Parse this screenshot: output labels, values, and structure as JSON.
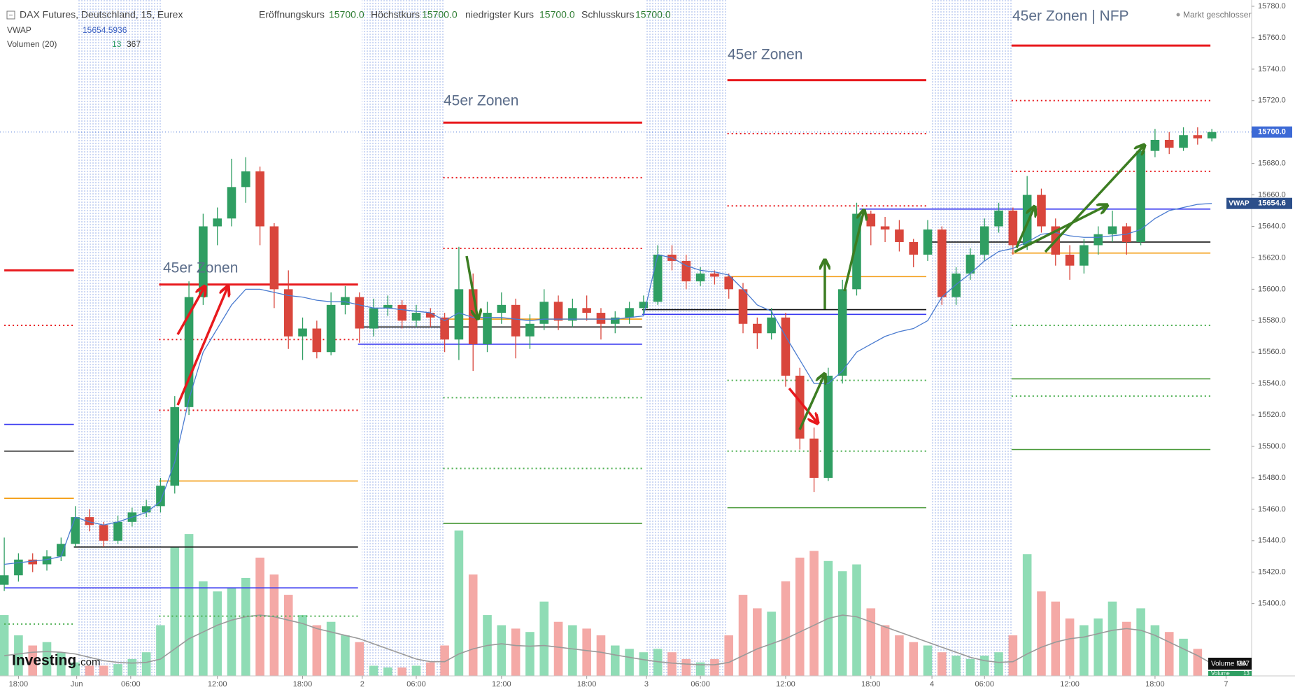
{
  "header": {
    "title": "DAX Futures, Deutschland, 15, Eurex",
    "open_label": "Eröffnungskurs",
    "open": "15700.0",
    "high_label": "Höchstkurs",
    "high": "15700.0",
    "low_label": "niedrigster Kurs",
    "low": "15700.0",
    "close_label": "Schlusskurs",
    "close": "15700.0",
    "vwap_name": "VWAP",
    "volume_name": "Volumen (20)",
    "status": "Markt geschlossen"
  },
  "logo": {
    "brand": "Investing",
    "suffix": ".com"
  },
  "chart_data": {
    "type": "candlestick",
    "annotations": [
      "45er Zonen",
      "45er Zonen",
      "45er Zonen",
      "45er Zonen | NFP"
    ],
    "ylim": [
      15354,
      15784
    ],
    "yticks": [
      {
        "value": 15400,
        "label": "15400.0"
      },
      {
        "value": 15420,
        "label": "15420.0"
      },
      {
        "value": 15440,
        "label": "15440.0"
      },
      {
        "value": 15460,
        "label": "15460.0"
      },
      {
        "value": 15480,
        "label": "15480.0"
      },
      {
        "value": 15500,
        "label": "15500.0"
      },
      {
        "value": 15520,
        "label": "15520.0"
      },
      {
        "value": 15540,
        "label": "15540.0"
      },
      {
        "value": 15560,
        "label": "15560.0"
      },
      {
        "value": 15580,
        "label": "15580.0"
      },
      {
        "value": 15600,
        "label": "15600.0"
      },
      {
        "value": 15620,
        "label": "15620.0"
      },
      {
        "value": 15640,
        "label": "15640.0"
      },
      {
        "value": 15660,
        "label": "15660.0"
      },
      {
        "value": 15680,
        "label": "15680.0"
      },
      {
        "value": 15700,
        "label": "15700.0"
      },
      {
        "value": 15720,
        "label": "15720.0"
      },
      {
        "value": 15740,
        "label": "15740.0"
      },
      {
        "value": 15760,
        "label": "15760.0"
      },
      {
        "value": 15780,
        "label": "15780.0"
      }
    ],
    "xlim": [
      -0.3,
      87.8
    ],
    "xticks": [
      {
        "value": 1,
        "label": "18:00"
      },
      {
        "value": 5.1,
        "label": "Jun"
      },
      {
        "value": 8.9,
        "label": "06:00"
      },
      {
        "value": 15,
        "label": "12:00"
      },
      {
        "value": 21,
        "label": "18:00"
      },
      {
        "value": 25.2,
        "label": "2"
      },
      {
        "value": 29,
        "label": "06:00"
      },
      {
        "value": 35,
        "label": "12:00"
      },
      {
        "value": 41,
        "label": "18:00"
      },
      {
        "value": 45.2,
        "label": "3"
      },
      {
        "value": 49,
        "label": "06:00"
      },
      {
        "value": 55,
        "label": "12:00"
      },
      {
        "value": 61,
        "label": "18:00"
      },
      {
        "value": 65.3,
        "label": "4"
      },
      {
        "value": 69,
        "label": "06:00"
      },
      {
        "value": 75,
        "label": "12:00"
      },
      {
        "value": 81,
        "label": "18:00"
      },
      {
        "value": 86,
        "label": "7"
      }
    ],
    "grid": false,
    "up_color": "#2f9e62",
    "down_color": "#d9463c",
    "volume_up_color": "#8fdcb5",
    "volume_down_color": "#f4a9a6",
    "vwap_color": "#4a7bd0",
    "volume_ma_color": "#9a9a9a",
    "last_price": {
      "value": 15700,
      "label": "15700.0"
    },
    "vwap_label": "15654.6",
    "volume_ma_name": "Volume MA",
    "volume_name": "Volume",
    "y2lim": [
      0,
      20000
    ],
    "candles": [
      [
        15412,
        15442,
        15408,
        15418
      ],
      [
        15418,
        15432,
        15414,
        15428
      ],
      [
        15428,
        15432,
        15420,
        15425
      ],
      [
        15425,
        15434,
        15421,
        15430
      ],
      [
        15430,
        15442,
        15427,
        15438
      ],
      [
        15438,
        15462,
        15436,
        15455
      ],
      [
        15455,
        15460,
        15446,
        15450
      ],
      [
        15450,
        15452,
        15436,
        15440
      ],
      [
        15440,
        15456,
        15438,
        15452
      ],
      [
        15452,
        15461,
        15449,
        15458
      ],
      [
        15458,
        15466,
        15455,
        15462
      ],
      [
        15462,
        15480,
        15458,
        15475
      ],
      [
        15475,
        15532,
        15470,
        15525
      ],
      [
        15525,
        15605,
        15520,
        15595
      ],
      [
        15595,
        15648,
        15590,
        15640
      ],
      [
        15640,
        15652,
        15628,
        15645
      ],
      [
        15645,
        15683,
        15640,
        15665
      ],
      [
        15665,
        15684,
        15655,
        15675
      ],
      [
        15675,
        15678,
        15628,
        15640
      ],
      [
        15640,
        15642,
        15588,
        15600
      ],
      [
        15600,
        15612,
        15562,
        15570
      ],
      [
        15570,
        15582,
        15555,
        15575
      ],
      [
        15575,
        15580,
        15556,
        15560
      ],
      [
        15560,
        15598,
        15558,
        15590
      ],
      [
        15590,
        15602,
        15584,
        15595
      ],
      [
        15595,
        15598,
        15566,
        15575
      ],
      [
        15575,
        15594,
        15570,
        15588
      ],
      [
        15588,
        15596,
        15583,
        15590
      ],
      [
        15590,
        15593,
        15575,
        15580
      ],
      [
        15580,
        15590,
        15576,
        15585
      ],
      [
        15585,
        15588,
        15576,
        15582
      ],
      [
        15582,
        15585,
        15560,
        15568
      ],
      [
        15568,
        15627,
        15555,
        15600
      ],
      [
        15600,
        15610,
        15548,
        15565
      ],
      [
        15565,
        15592,
        15560,
        15585
      ],
      [
        15585,
        15598,
        15578,
        15590
      ],
      [
        15590,
        15594,
        15556,
        15570
      ],
      [
        15570,
        15584,
        15562,
        15578
      ],
      [
        15578,
        15600,
        15574,
        15592
      ],
      [
        15592,
        15596,
        15574,
        15580
      ],
      [
        15580,
        15594,
        15576,
        15588
      ],
      [
        15588,
        15596,
        15580,
        15585
      ],
      [
        15585,
        15588,
        15568,
        15578
      ],
      [
        15578,
        15586,
        15572,
        15582
      ],
      [
        15582,
        15592,
        15578,
        15588
      ],
      [
        15588,
        15596,
        15584,
        15592
      ],
      [
        15592,
        15628,
        15590,
        15622
      ],
      [
        15622,
        15628,
        15612,
        15618
      ],
      [
        15618,
        15622,
        15600,
        15605
      ],
      [
        15605,
        15614,
        15602,
        15610
      ],
      [
        15610,
        15612,
        15603,
        15608
      ],
      [
        15608,
        15610,
        15594,
        15600
      ],
      [
        15600,
        15604,
        15572,
        15578
      ],
      [
        15578,
        15582,
        15562,
        15572
      ],
      [
        15572,
        15588,
        15568,
        15582
      ],
      [
        15582,
        15585,
        15538,
        15545
      ],
      [
        15545,
        15550,
        15498,
        15505
      ],
      [
        15505,
        15512,
        15471,
        15480
      ],
      [
        15480,
        15550,
        15478,
        15545
      ],
      [
        15545,
        15606,
        15540,
        15600
      ],
      [
        15600,
        15655,
        15596,
        15648
      ],
      [
        15648,
        15650,
        15628,
        15640
      ],
      [
        15640,
        15646,
        15630,
        15638
      ],
      [
        15638,
        15644,
        15624,
        15630
      ],
      [
        15630,
        15632,
        15614,
        15622
      ],
      [
        15622,
        15644,
        15618,
        15638
      ],
      [
        15638,
        15640,
        15590,
        15595
      ],
      [
        15595,
        15614,
        15590,
        15610
      ],
      [
        15610,
        15626,
        15606,
        15622
      ],
      [
        15622,
        15645,
        15618,
        15640
      ],
      [
        15640,
        15655,
        15636,
        15650
      ],
      [
        15650,
        15652,
        15622,
        15628
      ],
      [
        15628,
        15672,
        15625,
        15660
      ],
      [
        15660,
        15664,
        15636,
        15640
      ],
      [
        15640,
        15645,
        15615,
        15622
      ],
      [
        15622,
        15628,
        15606,
        15615
      ],
      [
        15615,
        15632,
        15610,
        15628
      ],
      [
        15628,
        15640,
        15622,
        15635
      ],
      [
        15635,
        15650,
        15630,
        15640
      ],
      [
        15640,
        15642,
        15622,
        15630
      ],
      [
        15630,
        15692,
        15628,
        15688
      ],
      [
        15688,
        15702,
        15684,
        15695
      ],
      [
        15695,
        15700,
        15686,
        15690
      ],
      [
        15690,
        15703,
        15688,
        15698
      ],
      [
        15698,
        15703,
        15692,
        15696
      ],
      [
        15696,
        15702,
        15694,
        15700
      ]
    ],
    "volumes": [
      1800,
      1200,
      900,
      1000,
      700,
      400,
      300,
      300,
      350,
      500,
      700,
      1500,
      3800,
      4200,
      2800,
      2500,
      2600,
      2900,
      3500,
      3000,
      2400,
      1800,
      1500,
      1600,
      1200,
      1000,
      300,
      250,
      250,
      300,
      400,
      900,
      4300,
      3000,
      1800,
      1500,
      1400,
      1300,
      2200,
      1600,
      1500,
      1400,
      1200,
      900,
      800,
      700,
      800,
      700,
      500,
      400,
      500,
      1200,
      2400,
      2000,
      1900,
      2800,
      3500,
      3700,
      3400,
      3100,
      3300,
      2000,
      1500,
      1200,
      1000,
      900,
      700,
      600,
      500,
      600,
      700,
      1200,
      3600,
      2500,
      2200,
      1700,
      1500,
      1700,
      2200,
      1600,
      2000,
      1500,
      1300,
      1100,
      800,
      13
    ],
    "volume_ma": [
      600,
      650,
      700,
      720,
      700,
      650,
      550,
      450,
      400,
      380,
      400,
      500,
      800,
      1100,
      1300,
      1500,
      1650,
      1750,
      1800,
      1750,
      1650,
      1550,
      1400,
      1300,
      1200,
      1100,
      950,
      800,
      650,
      500,
      420,
      420,
      650,
      800,
      900,
      950,
      900,
      880,
      900,
      850,
      800,
      750,
      700,
      620,
      550,
      480,
      420,
      380,
      350,
      330,
      330,
      400,
      600,
      800,
      950,
      1100,
      1300,
      1500,
      1700,
      1800,
      1750,
      1600,
      1450,
      1300,
      1150,
      1000,
      850,
      700,
      550,
      450,
      400,
      420,
      650,
      850,
      1000,
      1100,
      1150,
      1250,
      1350,
      1400,
      1350,
      1200,
      1000,
      800,
      600,
      367
    ],
    "vwap": [
      15425,
      15426,
      15427,
      15428,
      15430,
      15455,
      15452,
      15450,
      15452,
      15455,
      15458,
      15465,
      15490,
      15530,
      15560,
      15575,
      15590,
      15600,
      15600,
      15598,
      15596,
      15595,
      15593,
      15592,
      15592,
      15590,
      15588,
      15588,
      15587,
      15586,
      15585,
      15580,
      15585,
      15582,
      15582,
      15582,
      15581,
      15580,
      15581,
      15581,
      15581,
      15581,
      15581,
      15581,
      15582,
      15583,
      15622,
      15620,
      15615,
      15612,
      15611,
      15609,
      15600,
      15590,
      15586,
      15570,
      15555,
      15540,
      15540,
      15548,
      15560,
      15565,
      15570,
      15573,
      15575,
      15580,
      15595,
      15603,
      15610,
      15618,
      15624,
      15626,
      15630,
      15635,
      15636,
      15634,
      15633,
      15633,
      15634,
      15635,
      15638,
      15645,
      15650,
      15652,
      15654,
      15654.5936
    ],
    "zones": [
      {
        "price": 15612,
        "color": "#e8191d",
        "style": "solid",
        "x": [
          0,
          4.9
        ]
      },
      {
        "price": 15577,
        "color": "#e8191d",
        "style": "dotted",
        "x": [
          0,
          4.9
        ]
      },
      {
        "price": 15514,
        "color": "#3b3bf0",
        "style": "solid",
        "x": [
          0,
          4.9
        ]
      },
      {
        "price": 15497,
        "color": "#111111",
        "style": "solid",
        "x": [
          0,
          4.9
        ]
      },
      {
        "price": 15467,
        "color": "#f39c12",
        "style": "solid",
        "x": [
          0,
          4.9
        ]
      },
      {
        "price": 15387,
        "color": "#4caf50",
        "style": "dotted",
        "x": [
          0,
          4.9
        ]
      },
      {
        "price": 15603,
        "color": "#e8191d",
        "style": "solid",
        "x": [
          10.9,
          24.9
        ]
      },
      {
        "price": 15568,
        "color": "#e8191d",
        "style": "dotted",
        "x": [
          10.9,
          24.9
        ]
      },
      {
        "price": 15523,
        "color": "#e8191d",
        "style": "dotted",
        "x": [
          10.9,
          24.9
        ]
      },
      {
        "price": 15478,
        "color": "#f39c12",
        "style": "solid",
        "x": [
          10.9,
          24.9
        ]
      },
      {
        "price": 15436,
        "color": "#111111",
        "style": "solid",
        "x": [
          4.9,
          24.9
        ]
      },
      {
        "price": 15410,
        "color": "#3b3bf0",
        "style": "solid",
        "x": [
          0,
          24.9
        ]
      },
      {
        "price": 15392,
        "color": "#4caf50",
        "style": "dotted",
        "x": [
          10.9,
          24.9
        ]
      },
      {
        "price": 15706,
        "color": "#e8191d",
        "style": "solid",
        "x": [
          30.9,
          44.9
        ]
      },
      {
        "price": 15671,
        "color": "#e8191d",
        "style": "dotted",
        "x": [
          30.9,
          44.9
        ]
      },
      {
        "price": 15626,
        "color": "#e8191d",
        "style": "dotted",
        "x": [
          30.9,
          44.9
        ]
      },
      {
        "price": 15581,
        "color": "#f39c12",
        "style": "solid",
        "x": [
          30.9,
          44.9
        ]
      },
      {
        "price": 15576,
        "color": "#111111",
        "style": "solid",
        "x": [
          24.9,
          44.9
        ]
      },
      {
        "price": 15565,
        "color": "#3b3bf0",
        "style": "solid",
        "x": [
          24.9,
          44.9
        ]
      },
      {
        "price": 15531,
        "color": "#4caf50",
        "style": "dotted",
        "x": [
          30.9,
          44.9
        ]
      },
      {
        "price": 15486,
        "color": "#4caf50",
        "style": "dotted",
        "x": [
          30.9,
          44.9
        ]
      },
      {
        "price": 15451,
        "color": "#4a9a3a",
        "style": "solid",
        "x": [
          30.9,
          44.9
        ]
      },
      {
        "price": 15733,
        "color": "#e8191d",
        "style": "solid",
        "x": [
          50.9,
          64.9
        ]
      },
      {
        "price": 15699,
        "color": "#e8191d",
        "style": "dotted",
        "x": [
          50.9,
          64.9
        ]
      },
      {
        "price": 15653,
        "color": "#e8191d",
        "style": "dotted",
        "x": [
          50.9,
          64.9
        ]
      },
      {
        "price": 15608,
        "color": "#f39c12",
        "style": "solid",
        "x": [
          50.9,
          64.9
        ]
      },
      {
        "price": 15587,
        "color": "#111111",
        "style": "solid",
        "x": [
          44.9,
          64.9
        ]
      },
      {
        "price": 15584,
        "color": "#3b3bf0",
        "style": "solid",
        "x": [
          44.9,
          64.9
        ]
      },
      {
        "price": 15542,
        "color": "#4caf50",
        "style": "dotted",
        "x": [
          50.9,
          64.9
        ]
      },
      {
        "price": 15497,
        "color": "#4caf50",
        "style": "dotted",
        "x": [
          50.9,
          64.9
        ]
      },
      {
        "price": 15461,
        "color": "#4a9a3a",
        "style": "solid",
        "x": [
          50.9,
          64.9
        ]
      },
      {
        "price": 15755,
        "color": "#e8191d",
        "style": "solid",
        "x": [
          70.9,
          84.9
        ]
      },
      {
        "price": 15720,
        "color": "#e8191d",
        "style": "dotted",
        "x": [
          70.9,
          84.9
        ]
      },
      {
        "price": 15675,
        "color": "#e8191d",
        "style": "dotted",
        "x": [
          70.9,
          84.9
        ]
      },
      {
        "price": 15623,
        "color": "#f39c12",
        "style": "solid",
        "x": [
          70.9,
          84.9
        ]
      },
      {
        "price": 15630,
        "color": "#111111",
        "style": "solid",
        "x": [
          64.9,
          84.9
        ]
      },
      {
        "price": 15651,
        "color": "#3b3bf0",
        "style": "solid",
        "x": [
          60.2,
          84.9
        ]
      },
      {
        "price": 15577,
        "color": "#4caf50",
        "style": "dotted",
        "x": [
          70.9,
          84.9
        ]
      },
      {
        "price": 15543,
        "color": "#4a9a3a",
        "style": "solid",
        "x": [
          70.9,
          84.9
        ]
      },
      {
        "price": 15532,
        "color": "#4caf50",
        "style": "dotted",
        "x": [
          70.9,
          84.9
        ]
      },
      {
        "price": 15498,
        "color": "#4a9a3a",
        "style": "solid",
        "x": [
          70.9,
          84.9
        ]
      }
    ]
  }
}
